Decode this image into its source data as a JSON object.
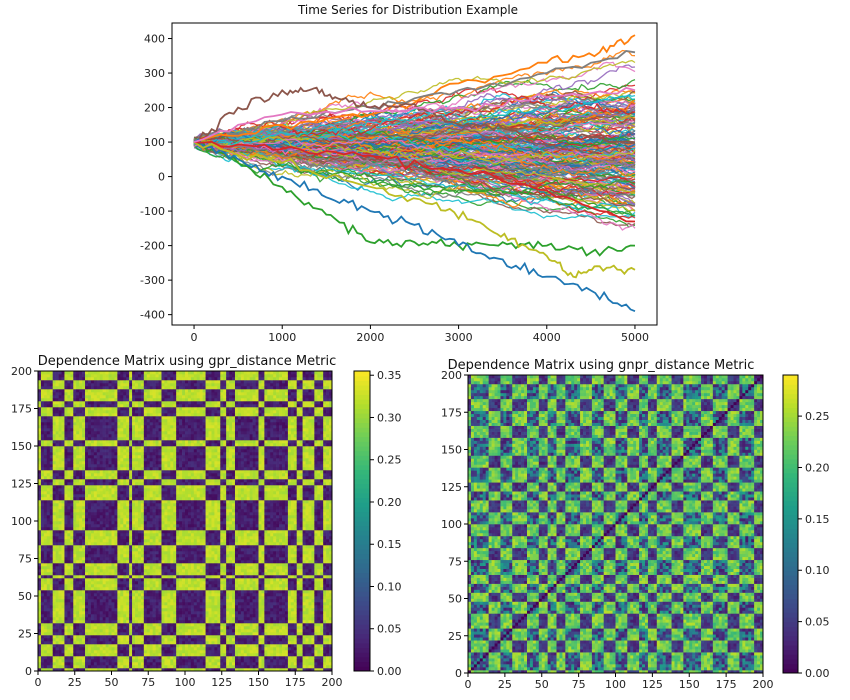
{
  "chart_data": [
    {
      "type": "line",
      "title": "Time Series for Distribution Example",
      "xlabel": "",
      "ylabel": "",
      "xlim": [
        -250,
        5250
      ],
      "ylim": [
        -430,
        445
      ],
      "x_ticks": [
        0,
        1000,
        2000,
        3000,
        4000,
        5000
      ],
      "y_ticks": [
        400,
        300,
        200,
        100,
        0,
        -100,
        -200,
        -300,
        -400
      ],
      "grid": false,
      "n_series": 200,
      "n_points": 5001,
      "start_value": 100,
      "highlighted_series": [
        {
          "color": "#ff7f0e",
          "points": [
            [
              0,
              100
            ],
            [
              1000,
              150
            ],
            [
              2000,
              180
            ],
            [
              3000,
              270
            ],
            [
              4000,
              330
            ],
            [
              4600,
              360
            ],
            [
              5000,
              410
            ]
          ]
        },
        {
          "color": "#7f7f7f",
          "points": [
            [
              0,
              100
            ],
            [
              1000,
              160
            ],
            [
              2000,
              200
            ],
            [
              3000,
              250
            ],
            [
              4000,
              300
            ],
            [
              5000,
              360
            ]
          ]
        },
        {
          "color": "#8c564b",
          "points": [
            [
              0,
              100
            ],
            [
              500,
              200
            ],
            [
              1000,
              250
            ],
            [
              1300,
              250
            ],
            [
              1600,
              230
            ],
            [
              2000,
              200
            ],
            [
              2500,
              210
            ],
            [
              3000,
              150
            ],
            [
              3500,
              140
            ],
            [
              4000,
              120
            ],
            [
              5000,
              100
            ]
          ]
        },
        {
          "color": "#2ca02c",
          "points": [
            [
              0,
              100
            ],
            [
              500,
              40
            ],
            [
              1000,
              -30
            ],
            [
              1500,
              -110
            ],
            [
              2000,
              -190
            ],
            [
              2500,
              -190
            ],
            [
              3000,
              -200
            ],
            [
              3500,
              -190
            ],
            [
              4000,
              -200
            ],
            [
              4500,
              -220
            ],
            [
              5000,
              -200
            ]
          ]
        },
        {
          "color": "#1f77b4",
          "points": [
            [
              0,
              100
            ],
            [
              500,
              50
            ],
            [
              1000,
              0
            ],
            [
              1500,
              -60
            ],
            [
              2000,
              -100
            ],
            [
              2500,
              -140
            ],
            [
              3000,
              -200
            ],
            [
              3500,
              -240
            ],
            [
              4000,
              -290
            ],
            [
              4500,
              -330
            ],
            [
              5000,
              -390
            ]
          ]
        },
        {
          "color": "#bcbd22",
          "points": [
            [
              0,
              100
            ],
            [
              1000,
              40
            ],
            [
              2000,
              -30
            ],
            [
              2700,
              -80
            ],
            [
              3200,
              -130
            ],
            [
              3600,
              -180
            ],
            [
              4000,
              -230
            ],
            [
              4300,
              -290
            ],
            [
              4600,
              -260
            ],
            [
              5000,
              -270
            ]
          ]
        },
        {
          "color": "#d62728",
          "points": [
            [
              0,
              100
            ],
            [
              1000,
              80
            ],
            [
              2000,
              60
            ],
            [
              3000,
              20
            ],
            [
              4000,
              -40
            ],
            [
              5000,
              -130
            ]
          ]
        },
        {
          "color": "#e377c2",
          "points": [
            [
              0,
              100
            ],
            [
              1000,
              180
            ],
            [
              2000,
              190
            ],
            [
              3000,
              200
            ],
            [
              4000,
              230
            ],
            [
              5000,
              250
            ]
          ]
        }
      ]
    },
    {
      "type": "heatmap",
      "title": "Dependence Matrix using gpr_distance Metric",
      "xlim": [
        0,
        200
      ],
      "ylim": [
        0,
        200
      ],
      "x_ticks": [
        0,
        25,
        50,
        75,
        100,
        125,
        150,
        175,
        200
      ],
      "y_ticks": [
        0,
        25,
        50,
        75,
        100,
        125,
        150,
        175,
        200
      ],
      "colorbar_range": [
        0,
        0.355
      ],
      "colorbar_ticks": [
        "0.35",
        "0.30",
        "0.25",
        "0.20",
        "0.15",
        "0.10",
        "0.05",
        "0.00"
      ],
      "colorbar_tick_values": [
        0.35,
        0.3,
        0.25,
        0.2,
        0.15,
        0.1,
        0.05,
        0.0
      ],
      "band_ranges": [
        [
          0,
          2
        ],
        [
          10,
          18
        ],
        [
          25,
          33
        ],
        [
          55,
          63
        ],
        [
          65,
          72
        ],
        [
          85,
          95
        ],
        [
          115,
          125
        ],
        [
          128,
          135
        ],
        [
          150,
          155
        ],
        [
          170,
          176
        ],
        [
          180,
          188
        ],
        [
          195,
          200
        ]
      ],
      "value_high": 0.32,
      "value_low": 0.01,
      "colormap": "viridis"
    },
    {
      "type": "heatmap",
      "title": "Dependence Matrix using gnpr_distance Metric",
      "xlim": [
        0,
        200
      ],
      "ylim": [
        0,
        200
      ],
      "x_ticks": [
        0,
        25,
        50,
        75,
        100,
        125,
        150,
        175,
        200
      ],
      "y_ticks": [
        0,
        25,
        50,
        75,
        100,
        125,
        150,
        175,
        200
      ],
      "colorbar_range": [
        0,
        0.29
      ],
      "colorbar_ticks": [
        "0.25",
        "0.20",
        "0.15",
        "0.10",
        "0.05",
        "0.00"
      ],
      "colorbar_tick_values": [
        0.25,
        0.2,
        0.15,
        0.1,
        0.05,
        0.0
      ],
      "band_ranges": [
        [
          0,
          3
        ],
        [
          14,
          22
        ],
        [
          30,
          40
        ],
        [
          48,
          54
        ],
        [
          60,
          66
        ],
        [
          76,
          84
        ],
        [
          92,
          100
        ],
        [
          108,
          116
        ],
        [
          122,
          128
        ],
        [
          138,
          146
        ],
        [
          158,
          166
        ],
        [
          176,
          184
        ],
        [
          194,
          200
        ]
      ],
      "value_high": 0.26,
      "value_mid": 0.15,
      "value_low": 0.02,
      "colormap": "viridis"
    }
  ]
}
